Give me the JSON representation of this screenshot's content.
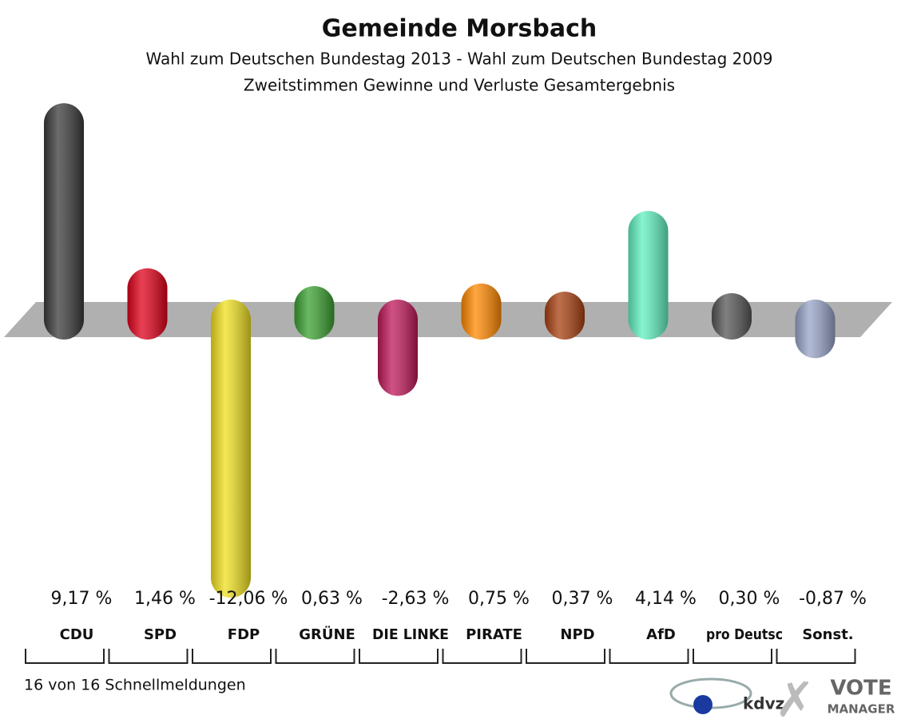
{
  "chart_data": {
    "type": "bar",
    "title": "Gemeinde Morsbach",
    "subtitle": "Wahl zum Deutschen Bundestag 2013 - Wahl zum Deutschen Bundestag 2009",
    "subtitle2": "Zweitstimmen Gewinne und Verluste Gesamtergebnis",
    "categories": [
      "CDU",
      "SPD",
      "FDP",
      "GRÜNE",
      "DIE LINKE",
      "PIRATE",
      "NPD",
      "AfD",
      "pro Deutsc",
      "Sonst."
    ],
    "values": [
      9.17,
      1.46,
      -12.06,
      0.63,
      -2.63,
      0.75,
      0.37,
      4.14,
      0.3,
      -0.87
    ],
    "value_labels": [
      "9,17 %",
      "1,46 %",
      "-12,06 %",
      "0,63 %",
      "-2,63 %",
      "0,75 %",
      "0,37 %",
      "4,14 %",
      "0,30 %",
      "-0,87 %"
    ],
    "colors": [
      "#3a3a3a",
      "#e0001a",
      "#f0e020",
      "#3aa030",
      "#c0185a",
      "#ff8800",
      "#a84010",
      "#60f0c0",
      "#555555",
      "#98a4c8"
    ],
    "note": "16 von 16 Schnellmeldungen",
    "logos": [
      "kdvz",
      "VOTE",
      "MANAGER"
    ]
  }
}
